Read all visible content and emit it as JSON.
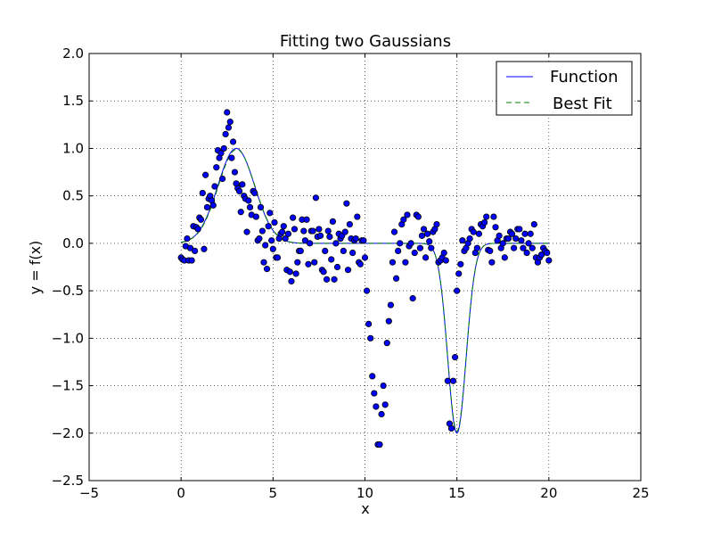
{
  "chart_data": {
    "type": "scatter",
    "title": "Fitting two Gaussians",
    "xlabel": "x",
    "ylabel": "y = f(x)",
    "xlim": [
      -5,
      25
    ],
    "ylim": [
      -2.5,
      2.0
    ],
    "x_ticks": [
      -5,
      0,
      5,
      10,
      15,
      20,
      25
    ],
    "x_tick_labels": [
      "−5",
      "0",
      "5",
      "10",
      "15",
      "20",
      "25"
    ],
    "y_ticks": [
      -2.5,
      -2.0,
      -1.5,
      -1.0,
      -0.5,
      0.0,
      0.5,
      1.0,
      1.5,
      2.0
    ],
    "y_tick_labels": [
      "−2.5",
      "−2.0",
      "−1.5",
      "−1.0",
      "−0.5",
      "0.0",
      "0.5",
      "1.0",
      "1.5",
      "2.0"
    ],
    "grid": true,
    "legend_position": "top-right",
    "colors": {
      "points": "#0000ff",
      "function": "#0000ff",
      "best_fit": "#008000"
    },
    "series": [
      {
        "name": "Function",
        "style": "solid-line",
        "model": "gaussian-sum",
        "components": [
          {
            "amplitude": 1.0,
            "center": 3.0,
            "width": 1.0
          },
          {
            "amplitude": -2.0,
            "center": 15.0,
            "width": 0.5
          }
        ],
        "x_range": [
          0,
          20
        ]
      },
      {
        "name": "Best Fit",
        "style": "dashed-line",
        "model": "gaussian-sum",
        "components": [
          {
            "amplitude": 0.99,
            "center": 3.02,
            "width": 1.0
          },
          {
            "amplitude": -1.98,
            "center": 15.0,
            "width": 0.5
          }
        ],
        "x_range": [
          0,
          20
        ]
      },
      {
        "name": "",
        "style": "points",
        "points": [
          [
            0.0,
            -0.15
          ],
          [
            0.08,
            -0.17
          ],
          [
            0.18,
            -0.18
          ],
          [
            0.25,
            -0.03
          ],
          [
            0.33,
            0.05
          ],
          [
            0.42,
            -0.18
          ],
          [
            0.5,
            -0.05
          ],
          [
            0.58,
            -0.18
          ],
          [
            0.67,
            0.18
          ],
          [
            0.75,
            -0.08
          ],
          [
            0.83,
            0.17
          ],
          [
            0.92,
            0.15
          ],
          [
            1.0,
            0.27
          ],
          [
            1.08,
            0.25
          ],
          [
            1.17,
            0.53
          ],
          [
            1.25,
            -0.06
          ],
          [
            1.33,
            0.72
          ],
          [
            1.42,
            0.38
          ],
          [
            1.5,
            0.47
          ],
          [
            1.58,
            0.5
          ],
          [
            1.67,
            0.45
          ],
          [
            1.75,
            0.4
          ],
          [
            1.83,
            0.6
          ],
          [
            1.92,
            0.8
          ],
          [
            2.0,
            0.98
          ],
          [
            2.08,
            0.9
          ],
          [
            2.17,
            0.95
          ],
          [
            2.25,
            0.68
          ],
          [
            2.33,
            1.0
          ],
          [
            2.42,
            1.15
          ],
          [
            2.5,
            1.38
          ],
          [
            2.58,
            1.22
          ],
          [
            2.67,
            1.28
          ],
          [
            2.75,
            0.9
          ],
          [
            2.83,
            1.07
          ],
          [
            2.92,
            0.75
          ],
          [
            3.0,
            0.63
          ],
          [
            3.08,
            0.58
          ],
          [
            3.17,
            0.55
          ],
          [
            3.25,
            0.33
          ],
          [
            3.33,
            0.62
          ],
          [
            3.42,
            0.5
          ],
          [
            3.5,
            0.47
          ],
          [
            3.58,
            0.12
          ],
          [
            3.67,
            0.45
          ],
          [
            3.75,
            0.38
          ],
          [
            3.83,
            0.3
          ],
          [
            3.92,
            0.55
          ],
          [
            4.0,
            0.53
          ],
          [
            4.08,
            0.28
          ],
          [
            4.17,
            0.03
          ],
          [
            4.25,
            0.05
          ],
          [
            4.33,
            0.38
          ],
          [
            4.42,
            0.13
          ],
          [
            4.5,
            -0.2
          ],
          [
            4.58,
            -0.02
          ],
          [
            4.67,
            -0.27
          ],
          [
            4.75,
            0.18
          ],
          [
            4.83,
            0.32
          ],
          [
            4.92,
            0.03
          ],
          [
            5.0,
            -0.06
          ],
          [
            5.08,
            0.22
          ],
          [
            5.17,
            -0.15
          ],
          [
            5.25,
            -0.15
          ],
          [
            5.33,
            0.05
          ],
          [
            5.42,
            0.1
          ],
          [
            5.5,
            0.12
          ],
          [
            5.58,
            0.18
          ],
          [
            5.67,
            0.05
          ],
          [
            5.75,
            -0.28
          ],
          [
            5.83,
            0.1
          ],
          [
            5.92,
            -0.3
          ],
          [
            6.0,
            -0.4
          ],
          [
            6.08,
            0.27
          ],
          [
            6.17,
            0.15
          ],
          [
            6.25,
            -0.32
          ],
          [
            6.33,
            -0.2
          ],
          [
            6.42,
            -0.08
          ],
          [
            6.5,
            -0.08
          ],
          [
            6.58,
            0.25
          ],
          [
            6.67,
            0.13
          ],
          [
            6.75,
            0.03
          ],
          [
            6.83,
            0.25
          ],
          [
            6.92,
            -0.22
          ],
          [
            7.0,
            0.0
          ],
          [
            7.08,
            0.13
          ],
          [
            7.17,
            0.13
          ],
          [
            7.25,
            -0.2
          ],
          [
            7.33,
            0.48
          ],
          [
            7.42,
            0.07
          ],
          [
            7.5,
            0.15
          ],
          [
            7.58,
            0.08
          ],
          [
            7.67,
            -0.28
          ],
          [
            7.75,
            -0.3
          ],
          [
            7.83,
            -0.08
          ],
          [
            7.92,
            -0.38
          ],
          [
            8.0,
            0.13
          ],
          [
            8.08,
            0.07
          ],
          [
            8.17,
            -0.17
          ],
          [
            8.25,
            0.23
          ],
          [
            8.33,
            -0.38
          ],
          [
            8.42,
            0.0
          ],
          [
            8.5,
            -0.25
          ],
          [
            8.58,
            0.1
          ],
          [
            8.67,
            0.05
          ],
          [
            8.75,
            0.08
          ],
          [
            8.83,
            -0.08
          ],
          [
            8.92,
            0.12
          ],
          [
            9.0,
            0.42
          ],
          [
            9.08,
            -0.28
          ],
          [
            9.17,
            0.2
          ],
          [
            9.25,
            0.05
          ],
          [
            9.33,
            -0.1
          ],
          [
            9.42,
            0.03
          ],
          [
            9.5,
            0.05
          ],
          [
            9.58,
            0.28
          ],
          [
            9.67,
            -0.2
          ],
          [
            9.75,
            -0.22
          ],
          [
            9.83,
            0.03
          ],
          [
            9.92,
            0.03
          ],
          [
            10.0,
            -0.15
          ],
          [
            10.1,
            -0.5
          ],
          [
            10.2,
            -0.85
          ],
          [
            10.3,
            -1.0
          ],
          [
            10.4,
            -1.4
          ],
          [
            10.5,
            -1.58
          ],
          [
            10.6,
            -1.72
          ],
          [
            10.7,
            -2.12
          ],
          [
            10.8,
            -2.12
          ],
          [
            10.9,
            -1.8
          ],
          [
            11.0,
            -1.5
          ],
          [
            11.1,
            -1.7
          ],
          [
            11.2,
            -1.05
          ],
          [
            11.3,
            -0.82
          ],
          [
            11.4,
            -0.65
          ],
          [
            11.5,
            -0.2
          ],
          [
            11.6,
            0.12
          ],
          [
            11.7,
            -0.37
          ],
          [
            11.8,
            -0.08
          ],
          [
            11.9,
            0.0
          ],
          [
            12.0,
            0.2
          ],
          [
            12.1,
            0.25
          ],
          [
            12.2,
            -0.2
          ],
          [
            12.3,
            0.3
          ],
          [
            12.4,
            -0.03
          ],
          [
            12.5,
            0.0
          ],
          [
            12.6,
            -0.58
          ],
          [
            12.7,
            -0.1
          ],
          [
            12.8,
            0.3
          ],
          [
            12.9,
            0.28
          ],
          [
            13.0,
            -0.05
          ],
          [
            13.1,
            0.08
          ],
          [
            13.2,
            0.15
          ],
          [
            13.3,
            -0.15
          ],
          [
            13.4,
            0.1
          ],
          [
            13.5,
            0.02
          ],
          [
            13.6,
            -0.05
          ],
          [
            13.7,
            0.12
          ],
          [
            13.8,
            0.15
          ],
          [
            13.9,
            0.2
          ],
          [
            14.0,
            -0.2
          ],
          [
            14.1,
            -0.18
          ],
          [
            14.2,
            -0.15
          ],
          [
            14.3,
            -0.1
          ],
          [
            14.4,
            -0.18
          ],
          [
            14.5,
            -1.45
          ],
          [
            14.6,
            -1.9
          ],
          [
            14.7,
            -1.95
          ],
          [
            14.8,
            -1.45
          ],
          [
            14.9,
            -1.2
          ],
          [
            15.0,
            -0.5
          ],
          [
            15.1,
            -0.32
          ],
          [
            15.2,
            -0.22
          ],
          [
            15.3,
            0.03
          ],
          [
            15.4,
            -0.08
          ],
          [
            15.5,
            -0.05
          ],
          [
            15.6,
            0.0
          ],
          [
            15.7,
            0.05
          ],
          [
            15.8,
            0.15
          ],
          [
            15.9,
            0.12
          ],
          [
            16.0,
            -0.1
          ],
          [
            16.1,
            -0.05
          ],
          [
            16.2,
            0.1
          ],
          [
            16.3,
            0.2
          ],
          [
            16.4,
            0.18
          ],
          [
            16.5,
            0.22
          ],
          [
            16.6,
            0.28
          ],
          [
            16.7,
            -0.07
          ],
          [
            16.8,
            -0.08
          ],
          [
            16.9,
            -0.2
          ],
          [
            17.0,
            0.28
          ],
          [
            17.1,
            0.17
          ],
          [
            17.2,
            0.03
          ],
          [
            17.3,
            0.08
          ],
          [
            17.4,
            -0.05
          ],
          [
            17.5,
            0.0
          ],
          [
            17.6,
            -0.15
          ],
          [
            17.7,
            0.05
          ],
          [
            17.8,
            0.05
          ],
          [
            17.9,
            0.12
          ],
          [
            18.0,
            0.1
          ],
          [
            18.1,
            -0.05
          ],
          [
            18.2,
            0.05
          ],
          [
            18.3,
            0.15
          ],
          [
            18.4,
            0.15
          ],
          [
            18.5,
            0.03
          ],
          [
            18.6,
            -0.05
          ],
          [
            18.7,
            0.1
          ],
          [
            18.8,
            -0.1
          ],
          [
            18.9,
            0.0
          ],
          [
            19.0,
            0.1
          ],
          [
            19.1,
            -0.05
          ],
          [
            19.2,
            0.2
          ],
          [
            19.3,
            -0.15
          ],
          [
            19.4,
            -0.2
          ],
          [
            19.5,
            -0.15
          ],
          [
            19.6,
            -0.12
          ],
          [
            19.7,
            -0.05
          ],
          [
            19.8,
            -0.08
          ],
          [
            19.9,
            -0.1
          ],
          [
            20.0,
            -0.18
          ]
        ]
      }
    ]
  }
}
